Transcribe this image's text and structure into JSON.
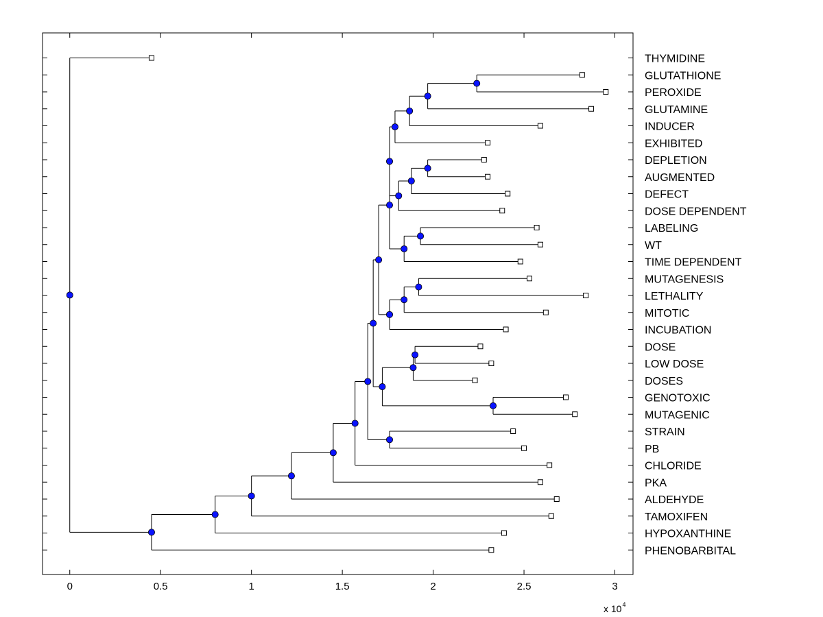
{
  "chart_data": {
    "type": "dendrogram",
    "orientation": "horizontal",
    "xlim": [
      -1500,
      31000
    ],
    "x_ticks": [
      0,
      5000,
      10000,
      15000,
      20000,
      25000,
      30000
    ],
    "x_tick_labels": [
      "0",
      "0.5",
      "1",
      "1.5",
      "2",
      "2.5",
      "3"
    ],
    "x_multiplier": {
      "base": "x 10",
      "exponent": "4"
    },
    "leaf_color": "#ffffff",
    "node_color": "#0a14ff",
    "line_color": "#000000",
    "leaves": [
      {
        "label": "THYMIDINE",
        "value": 4500
      },
      {
        "label": "GLUTATHIONE",
        "value": 28200
      },
      {
        "label": "PEROXIDE",
        "value": 29500
      },
      {
        "label": "GLUTAMINE",
        "value": 28700
      },
      {
        "label": "INDUCER",
        "value": 25900
      },
      {
        "label": "EXHIBITED",
        "value": 23000
      },
      {
        "label": "DEPLETION",
        "value": 22800
      },
      {
        "label": "AUGMENTED",
        "value": 23000
      },
      {
        "label": "DEFECT",
        "value": 24100
      },
      {
        "label": "DOSE DEPENDENT",
        "value": 23800
      },
      {
        "label": "LABELING",
        "value": 25700
      },
      {
        "label": "WT",
        "value": 25900
      },
      {
        "label": "TIME DEPENDENT",
        "value": 24800
      },
      {
        "label": "MUTAGENESIS",
        "value": 25300
      },
      {
        "label": "LETHALITY",
        "value": 28400
      },
      {
        "label": "MITOTIC",
        "value": 26200
      },
      {
        "label": "INCUBATION",
        "value": 24000
      },
      {
        "label": "DOSE",
        "value": 22600
      },
      {
        "label": "LOW DOSE",
        "value": 23200
      },
      {
        "label": "DOSES",
        "value": 22300
      },
      {
        "label": "GENOTOXIC",
        "value": 27300
      },
      {
        "label": "MUTAGENIC",
        "value": 27800
      },
      {
        "label": "STRAIN",
        "value": 24400
      },
      {
        "label": "PB",
        "value": 25000
      },
      {
        "label": "CHLORIDE",
        "value": 26400
      },
      {
        "label": "PKA",
        "value": 25900
      },
      {
        "label": "ALDEHYDE",
        "value": 26800
      },
      {
        "label": "TAMOXIFEN",
        "value": 26500
      },
      {
        "label": "HYPOXANTHINE",
        "value": 23900
      },
      {
        "label": "PHENOBARBITAL",
        "value": 23200
      }
    ],
    "merges": [
      {
        "id": "n1",
        "value": 22400,
        "children": [
          "L1",
          "L2"
        ]
      },
      {
        "id": "n2",
        "value": 19700,
        "children": [
          "n1",
          "L3"
        ]
      },
      {
        "id": "n3",
        "value": 18700,
        "children": [
          "n2",
          "L4"
        ]
      },
      {
        "id": "n4",
        "value": 17900,
        "children": [
          "n3",
          "L5"
        ]
      },
      {
        "id": "n5",
        "value": 19700,
        "children": [
          "L6",
          "L7"
        ]
      },
      {
        "id": "n6",
        "value": 18800,
        "children": [
          "n5",
          "L8"
        ]
      },
      {
        "id": "n7",
        "value": 18100,
        "children": [
          "n6",
          "L9"
        ]
      },
      {
        "id": "n8",
        "value": 17600,
        "children": [
          "n4",
          "n7"
        ]
      },
      {
        "id": "n9",
        "value": 19300,
        "children": [
          "L10",
          "L11"
        ]
      },
      {
        "id": "n10",
        "value": 18400,
        "children": [
          "n9",
          "L12"
        ]
      },
      {
        "id": "n11",
        "value": 17600,
        "children": [
          "n8",
          "n10"
        ]
      },
      {
        "id": "n12",
        "value": 19200,
        "children": [
          "L13",
          "L14"
        ]
      },
      {
        "id": "n13",
        "value": 18400,
        "children": [
          "n12",
          "L15"
        ]
      },
      {
        "id": "n14",
        "value": 17600,
        "children": [
          "n13",
          "L16"
        ]
      },
      {
        "id": "n15",
        "value": 17000,
        "children": [
          "n11",
          "n14"
        ]
      },
      {
        "id": "n16",
        "value": 19000,
        "children": [
          "L17",
          "L18"
        ]
      },
      {
        "id": "n17",
        "value": 18900,
        "children": [
          "n16",
          "L19"
        ]
      },
      {
        "id": "n18",
        "value": 23300,
        "children": [
          "L20",
          "L21"
        ]
      },
      {
        "id": "n19",
        "value": 17200,
        "children": [
          "n17",
          "n18"
        ]
      },
      {
        "id": "n20",
        "value": 16700,
        "children": [
          "n15",
          "n19"
        ]
      },
      {
        "id": "n21",
        "value": 17600,
        "children": [
          "L22",
          "L23"
        ]
      },
      {
        "id": "n22",
        "value": 16400,
        "children": [
          "n20",
          "n21"
        ]
      },
      {
        "id": "n23",
        "value": 15700,
        "children": [
          "n22",
          "L24"
        ]
      },
      {
        "id": "n24",
        "value": 14500,
        "children": [
          "n23",
          "L25"
        ]
      },
      {
        "id": "n25",
        "value": 12200,
        "children": [
          "n24",
          "L26"
        ]
      },
      {
        "id": "n26",
        "value": 10000,
        "children": [
          "n25",
          "L27"
        ]
      },
      {
        "id": "n27",
        "value": 8000,
        "children": [
          "n26",
          "L28"
        ]
      },
      {
        "id": "n28",
        "value": 4500,
        "children": [
          "n27",
          "L29"
        ]
      },
      {
        "id": "root",
        "value": 0,
        "children": [
          "L0",
          "n28"
        ]
      }
    ]
  }
}
